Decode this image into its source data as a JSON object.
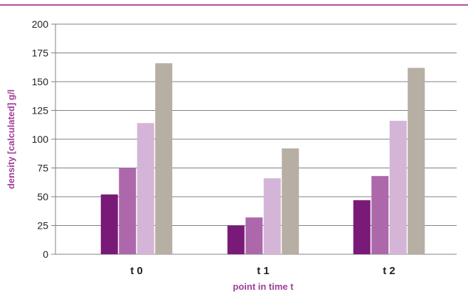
{
  "chart_data": {
    "type": "bar",
    "categories": [
      "t 0",
      "t 1",
      "t 2"
    ],
    "series": [
      {
        "color": "#7a1a78",
        "values": [
          52,
          25,
          47
        ]
      },
      {
        "color": "#ad68ac",
        "values": [
          75,
          32,
          68
        ]
      },
      {
        "color": "#d4b5d7",
        "values": [
          114,
          66,
          116
        ]
      },
      {
        "color": "#b7aea4",
        "values": [
          166,
          92,
          162
        ]
      }
    ],
    "xlabel": "point in time t",
    "ylabel": "density [calculated] g/l",
    "ylim": [
      0,
      200
    ],
    "yticks": [
      0,
      25,
      50,
      75,
      100,
      125,
      150,
      175,
      200
    ],
    "grid": true,
    "legend": "none"
  },
  "colors": {
    "accent": "#b04fa0",
    "axis_label": "#a03c9a",
    "grid": "#808080",
    "tick_text": "#222222"
  }
}
